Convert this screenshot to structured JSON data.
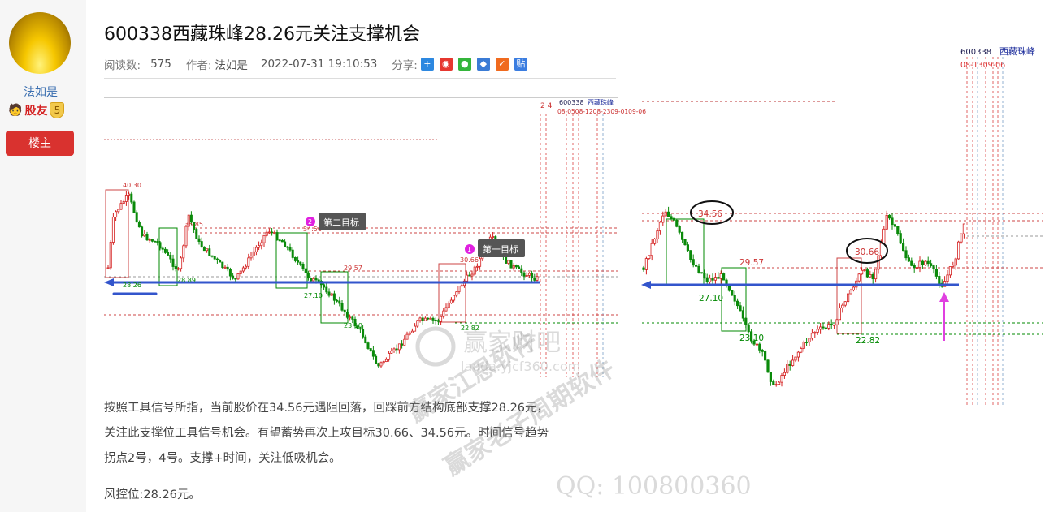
{
  "sidebar": {
    "username": "法如是",
    "rank": "股友",
    "level": "5",
    "owner_button": "楼主"
  },
  "post": {
    "title": "600338西藏珠峰28.26元关注支撑机会",
    "reads_label": "阅读数:",
    "reads": "575",
    "author_label": "作者:",
    "author": "法如是",
    "datetime": "2022-07-31 19:10:53",
    "share_label": "分享:",
    "share_icons": [
      "plus-share-icon",
      "weibo-icon",
      "wechat-icon",
      "qq-icon",
      "tencent-weibo-icon",
      "tieba-icon"
    ],
    "paragraphs": [
      "按照工具信号所指，当前股价在34.56元遇阻回落，回踩前方结构底部支撑28.26元，",
      "关注此支撑位工具信号机会。有望蓄势再次上攻目标30.66、34.56元。时间信号趋势",
      "拐点2号，4号。支撑+时间，关注低吸机会。",
      "风控位:28.26元。"
    ]
  },
  "left_chart": {
    "stock_code": "600338",
    "stock_name": "西藏珠峰",
    "time_marks": "2 4",
    "date_marks": "08-0508-1208-2309-0109-06",
    "levels": [
      "40.30",
      "35.85",
      "34.56",
      "28.89",
      "28.26",
      "27.10",
      "29.57",
      "23.10",
      "30.66",
      "22.82"
    ],
    "target_1": {
      "num": "1",
      "label": "第一目标"
    },
    "target_2": {
      "num": "2",
      "label": "第二目标"
    },
    "watermark_logo": "赢家财吧",
    "watermark_url": "laoda.yjcf360.com"
  },
  "right_chart": {
    "stock_code": "600338",
    "stock_name": "西藏珠峰",
    "date_marks": "08-1309-06",
    "levels": [
      "34.56",
      "30.66",
      "29.57",
      "27.10",
      "23.10",
      "22.82"
    ]
  },
  "watermarks": [
    "赢家江恩软件",
    "赢家老子周期软件",
    "QQ: 100800360"
  ],
  "colors": {
    "up": "#d42020",
    "down": "#0a8a0a",
    "support_line": "#3355cc",
    "accent": "#d9322f",
    "arrow": "#e040e0"
  }
}
